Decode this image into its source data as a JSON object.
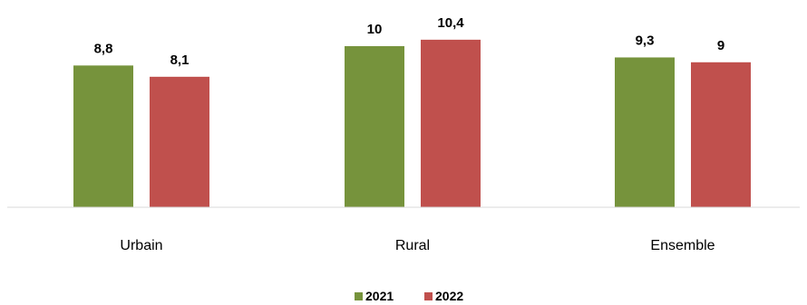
{
  "chart_data": {
    "type": "bar",
    "title": "",
    "xlabel": "",
    "ylabel": "",
    "categories": [
      "Urbain",
      "Rural",
      "Ensemble"
    ],
    "series": [
      {
        "name": "2021",
        "values": [
          "8,8",
          "10",
          "9,3"
        ],
        "numeric": [
          8.8,
          10,
          9.3
        ],
        "color": "#76933c"
      },
      {
        "name": "2022",
        "values": [
          "8,1",
          "10,4",
          "9"
        ],
        "numeric": [
          8.1,
          10.4,
          9
        ],
        "color": "#c0504d"
      }
    ],
    "ylim": [
      0,
      12
    ],
    "grid": false,
    "legend_position": "bottom"
  }
}
